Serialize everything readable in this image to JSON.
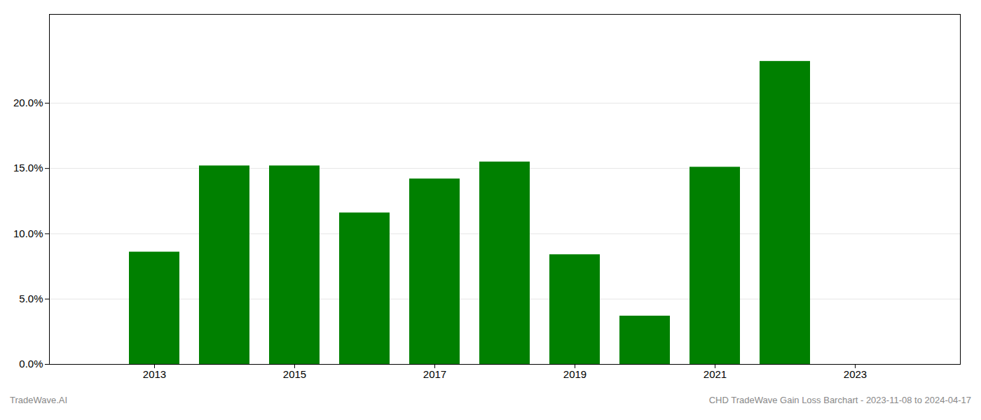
{
  "chart_data": {
    "type": "bar",
    "x": [
      2013,
      2014,
      2015,
      2016,
      2017,
      2018,
      2019,
      2020,
      2021,
      2022
    ],
    "values": [
      0.086,
      0.152,
      0.152,
      0.116,
      0.142,
      0.155,
      0.084,
      0.037,
      0.151,
      0.232
    ],
    "color": "#008000",
    "xlim": [
      2011.5,
      2024.5
    ],
    "xticks": [
      2013,
      2015,
      2017,
      2019,
      2021,
      2023
    ],
    "ylim": [
      0,
      0.268
    ],
    "yticks": [
      {
        "value": 0.0,
        "label": "0.0%"
      },
      {
        "value": 0.05,
        "label": "5.0%"
      },
      {
        "value": 0.1,
        "label": "10.0%"
      },
      {
        "value": 0.15,
        "label": "15.0%"
      },
      {
        "value": 0.2,
        "label": "20.0%"
      }
    ],
    "grid": true,
    "annotations": [
      "TradeWave.AI",
      "CHD TradeWave Gain Loss Barchart - 2023-11-08 to 2024-04-17"
    ]
  }
}
